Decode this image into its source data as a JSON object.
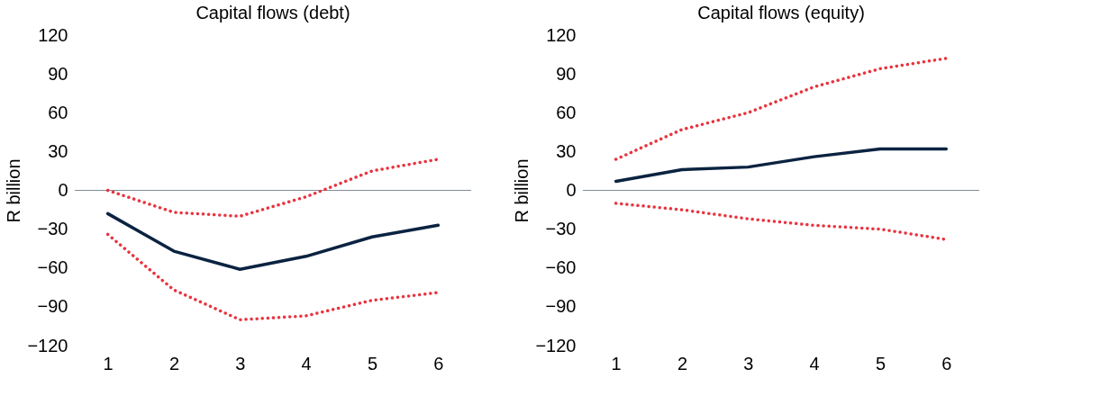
{
  "chart_data": [
    {
      "type": "line",
      "title": "Capital flows (debt)",
      "ylabel": "R billion",
      "categories": [
        "1",
        "2",
        "3",
        "4",
        "5",
        "6"
      ],
      "ylim": [
        -120,
        120
      ],
      "yticks": [
        -120,
        -90,
        -60,
        -30,
        0,
        30,
        60,
        90,
        120
      ],
      "grid": false,
      "marker": "none",
      "ref_lines": [
        {
          "axis": "y",
          "value": 0,
          "color": "#7f8c99"
        }
      ],
      "series": [
        {
          "color": "#0b2341",
          "line_style": "solid",
          "values": [
            -18,
            -47,
            -61,
            -51,
            -36,
            -27
          ]
        },
        {
          "color": "#e8343f",
          "line_style": "dotted",
          "values": [
            0,
            -17,
            -20,
            -5,
            15,
            24
          ]
        },
        {
          "color": "#e8343f",
          "line_style": "dotted",
          "values": [
            -34,
            -77,
            -100,
            -97,
            -85,
            -79
          ]
        }
      ]
    },
    {
      "type": "line",
      "title": "Capital flows (equity)",
      "ylabel": "R billion",
      "categories": [
        "1",
        "2",
        "3",
        "4",
        "5",
        "6"
      ],
      "ylim": [
        -120,
        120
      ],
      "yticks": [
        -120,
        -90,
        -60,
        -30,
        0,
        30,
        60,
        90,
        120
      ],
      "grid": false,
      "marker": "none",
      "ref_lines": [
        {
          "axis": "y",
          "value": 0,
          "color": "#7f8c99"
        }
      ],
      "series": [
        {
          "color": "#0b2341",
          "line_style": "solid",
          "values": [
            7,
            16,
            18,
            26,
            32,
            32
          ]
        },
        {
          "color": "#e8343f",
          "line_style": "dotted",
          "values": [
            24,
            47,
            60,
            80,
            94,
            102
          ]
        },
        {
          "color": "#e8343f",
          "line_style": "dotted",
          "values": [
            -10,
            -15,
            -22,
            -27,
            -30,
            -38
          ]
        }
      ]
    }
  ]
}
